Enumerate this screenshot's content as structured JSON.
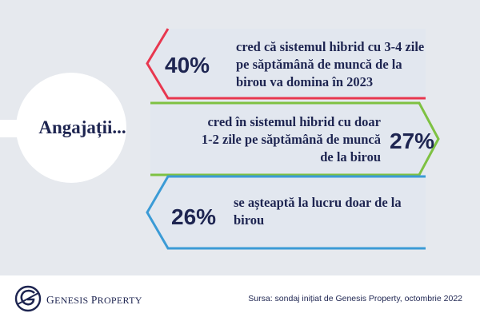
{
  "circle_label": "Angajații...",
  "stats": [
    {
      "percent": "40%",
      "lines": [
        "cred că sistemul hibrid cu 3-4 zile",
        "pe săptămână de muncă de la",
        "birou va domina în 2023"
      ],
      "accent": "#e8374f"
    },
    {
      "percent": "27%",
      "lines": [
        "cred în sistemul hibrid cu doar",
        "1-2 zile pe săptămână de muncă",
        "de la birou"
      ],
      "accent": "#7ec142"
    },
    {
      "percent": "26%",
      "lines": [
        "se așteaptă la lucru doar de la",
        "birou"
      ],
      "accent": "#3b9bd6"
    }
  ],
  "footer": {
    "brand_initial_1": "G",
    "brand_rest_1": "ENESIS ",
    "brand_initial_2": "P",
    "brand_rest_2": "ROPERTY",
    "source": "Sursa: sondaj inițiat de Genesis Property, octombrie 2022"
  },
  "colors": {
    "navy": "#1e2551",
    "background": "#e6e9ee",
    "card": "#e2e7ef"
  }
}
